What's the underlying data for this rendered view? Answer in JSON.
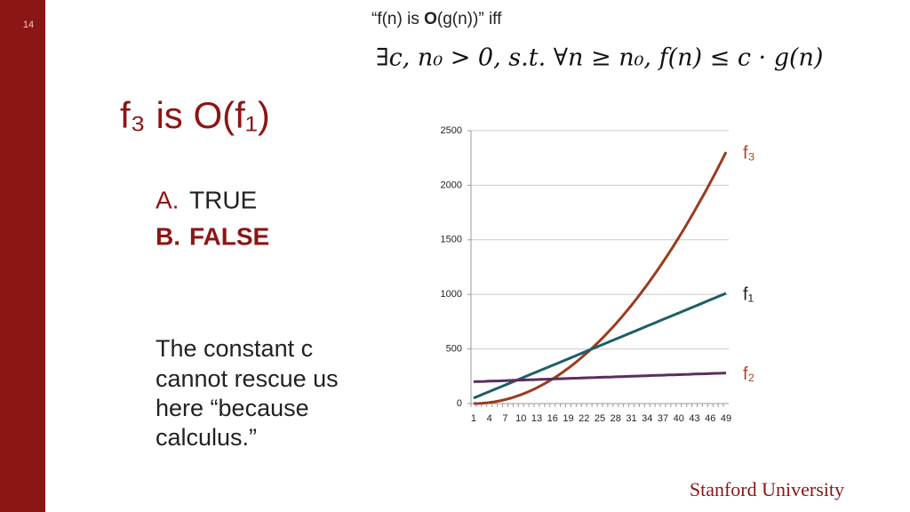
{
  "slide": {
    "page_number": "14",
    "definition": [
      "“f(n) is ",
      "O",
      "(g(n))” iff"
    ],
    "formula": "∃c, n₀ > 0, s.t. ∀n ≥ n₀, f(n) ≤ c · g(n)",
    "title": "f₃ is O(f₁)",
    "options": [
      {
        "letter": "A.",
        "text": "TRUE"
      },
      {
        "letter": "B.",
        "text": "FALSE"
      }
    ],
    "note": [
      "The constant c",
      "cannot rescue us",
      "here “because",
      "calculus.”"
    ],
    "footer": "Stanford University"
  },
  "chart_data": {
    "type": "line",
    "categories": [
      1,
      null,
      null,
      4,
      null,
      null,
      7,
      null,
      null,
      10,
      null,
      null,
      13,
      null,
      null,
      16,
      null,
      null,
      19,
      null,
      null,
      22,
      null,
      null,
      25,
      null,
      null,
      28,
      null,
      null,
      31,
      null,
      null,
      34,
      null,
      null,
      37,
      null,
      null,
      40,
      null,
      null,
      43,
      null,
      null,
      46,
      null,
      null,
      49
    ],
    "series": [
      {
        "name": "f₃",
        "color": "#9a3b1e",
        "values": [
          0,
          1,
          4,
          9,
          16,
          25,
          36,
          49,
          64,
          81,
          100,
          121,
          144,
          169,
          196,
          225,
          256,
          289,
          324,
          361,
          400,
          441,
          484,
          529,
          576,
          625,
          676,
          729,
          784,
          841,
          900,
          961,
          1024,
          1089,
          1156,
          1225,
          1296,
          1369,
          1444,
          1521,
          1600,
          1681,
          1764,
          1849,
          1936,
          2025,
          2116,
          2209,
          2304
        ]
      },
      {
        "name": "f₁",
        "color": "#1d5e69",
        "values": [
          50,
          70,
          90,
          110,
          130,
          150,
          170,
          190,
          210,
          230,
          250,
          270,
          290,
          310,
          330,
          350,
          370,
          390,
          410,
          430,
          450,
          470,
          490,
          510,
          530,
          550,
          570,
          590,
          610,
          630,
          650,
          670,
          690,
          710,
          730,
          750,
          770,
          790,
          810,
          830,
          850,
          870,
          890,
          910,
          930,
          950,
          970,
          990,
          1010
        ]
      },
      {
        "name": "f₂",
        "color": "#5b2d5f",
        "values": [
          200,
          202,
          203,
          205,
          207,
          208,
          210,
          212,
          213,
          215,
          217,
          218,
          220,
          222,
          223,
          225,
          227,
          228,
          230,
          232,
          233,
          235,
          237,
          238,
          240,
          242,
          243,
          245,
          247,
          248,
          250,
          252,
          253,
          255,
          257,
          258,
          260,
          262,
          263,
          265,
          267,
          268,
          270,
          272,
          273,
          275,
          277,
          278,
          280
        ]
      }
    ],
    "ylim": [
      0,
      2500
    ],
    "yticks": [
      0,
      500,
      1000,
      1500,
      2000,
      2500
    ],
    "grid": true
  }
}
